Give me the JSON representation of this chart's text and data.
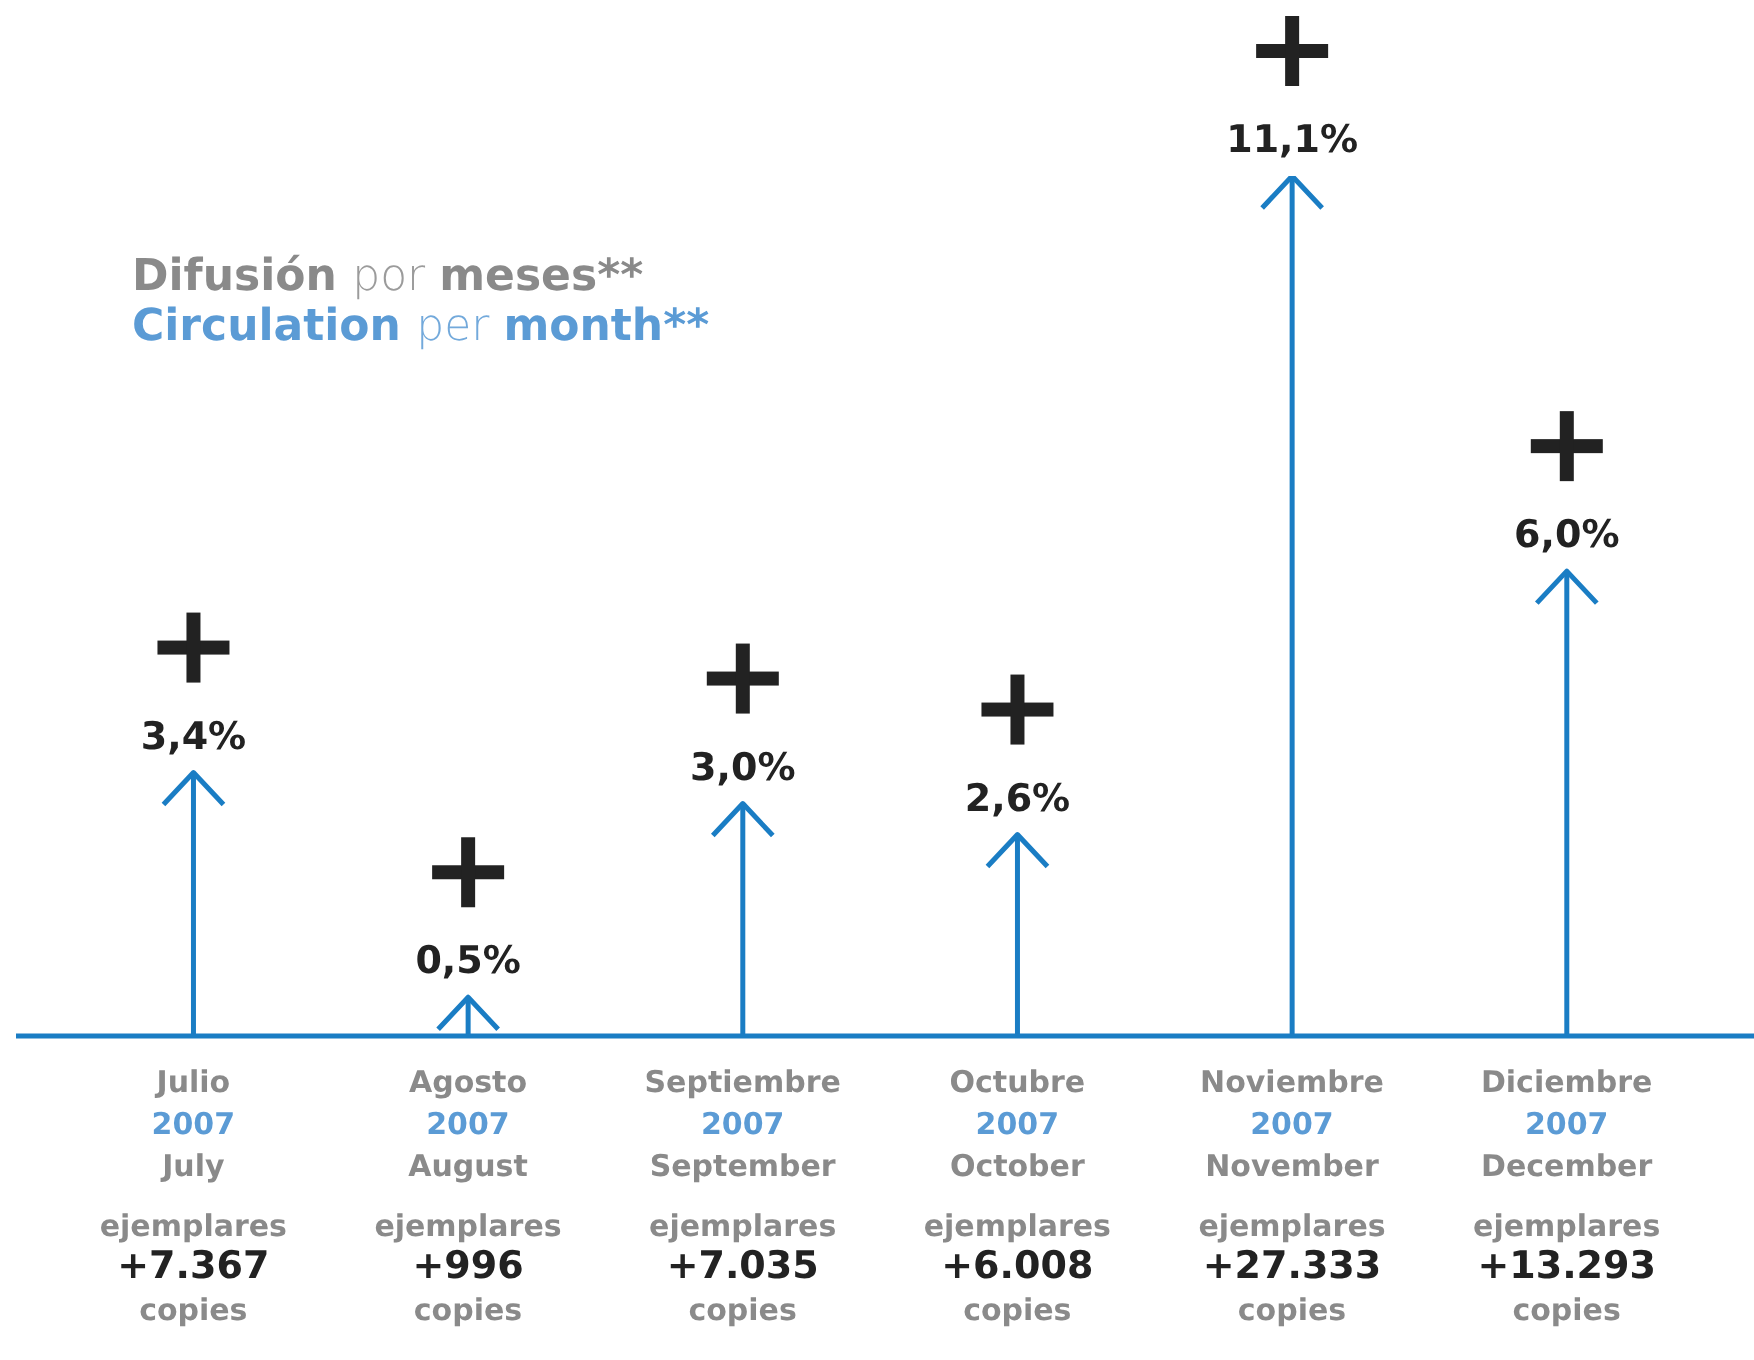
{
  "chart_data": {
    "type": "lollipop",
    "title": "Difusión por meses**",
    "subtitle": "Circulation per month**",
    "categories": [
      "Julio\n2007\nJuly",
      "Agosto\n2007\nAugust",
      "Septiembre\n2007\nSeptember",
      "Octubre\n2007\nOctober",
      "Noviembre\n2007\nNovember",
      "Diciembre\n2007\nDecember"
    ],
    "values": [
      3.4,
      0.5,
      3.0,
      2.6,
      11.1,
      6.0
    ],
    "value_labels": [
      "3,4%",
      "0,5%",
      "3,0%",
      "2,6%",
      "11,1%",
      "6,0%"
    ],
    "color": "#1a7dc4",
    "tick_labels": "x",
    "annotations": [
      "ejemplares\n+7.367\ncopies",
      "ejemplares\n+996\ncopies",
      "ejemplares\n+7.035\ncopies",
      "ejemplares\n+6.008\ncopies",
      "ejemplares\n+27.333\ncopies",
      "ejemplares\n+13.293\ncopies"
    ]
  }
}
